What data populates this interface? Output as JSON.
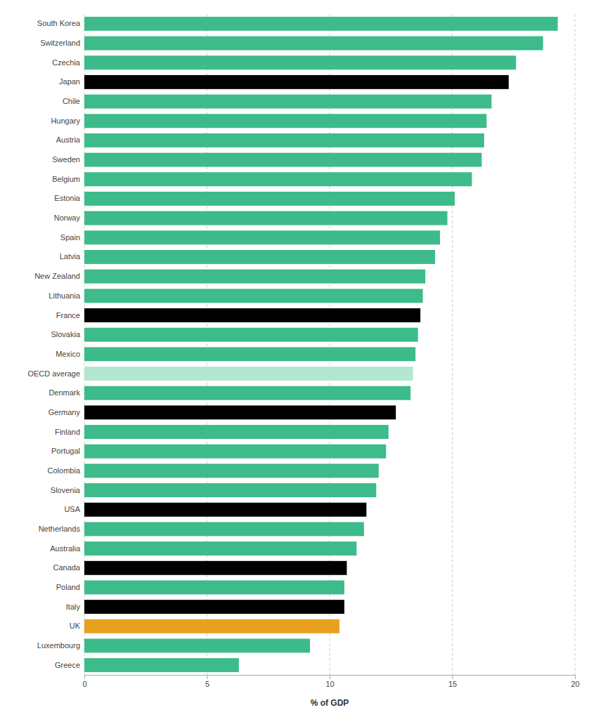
{
  "chart_data": {
    "type": "bar",
    "orientation": "horizontal",
    "categories": [
      "South Korea",
      "Switzerland",
      "Czechia",
      "Japan",
      "Chile",
      "Hungary",
      "Austria",
      "Sweden",
      "Belgium",
      "Estonia",
      "Norway",
      "Spain",
      "Latvia",
      "New Zealand",
      "Lithuania",
      "France",
      "Slovakia",
      "Mexico",
      "OECD average",
      "Denmark",
      "Germany",
      "Finland",
      "Portugal",
      "Colombia",
      "Slovenia",
      "USA",
      "Netherlands",
      "Australia",
      "Canada",
      "Poland",
      "Italy",
      "UK",
      "Luxembourg",
      "Greece"
    ],
    "values": [
      19.3,
      18.7,
      17.6,
      17.3,
      16.6,
      16.4,
      16.3,
      16.2,
      15.8,
      15.1,
      14.8,
      14.5,
      14.3,
      13.9,
      13.8,
      13.7,
      13.6,
      13.5,
      13.4,
      13.3,
      12.7,
      12.4,
      12.3,
      12.0,
      11.9,
      11.5,
      11.4,
      11.1,
      10.7,
      10.6,
      10.6,
      10.4,
      9.2,
      6.3
    ],
    "colors": [
      "#3dbb8a",
      "#3dbb8a",
      "#3dbb8a",
      "#000000",
      "#3dbb8a",
      "#3dbb8a",
      "#3dbb8a",
      "#3dbb8a",
      "#3dbb8a",
      "#3dbb8a",
      "#3dbb8a",
      "#3dbb8a",
      "#3dbb8a",
      "#3dbb8a",
      "#3dbb8a",
      "#000000",
      "#3dbb8a",
      "#3dbb8a",
      "#b2e8d0",
      "#3dbb8a",
      "#000000",
      "#3dbb8a",
      "#3dbb8a",
      "#3dbb8a",
      "#3dbb8a",
      "#000000",
      "#3dbb8a",
      "#3dbb8a",
      "#000000",
      "#3dbb8a",
      "#000000",
      "#e8a020",
      "#3dbb8a",
      "#3dbb8a"
    ],
    "xlabel": "% of GDP",
    "xlim": [
      0,
      20
    ],
    "xticks": [
      0,
      5,
      10,
      15,
      20
    ],
    "grid": true
  }
}
